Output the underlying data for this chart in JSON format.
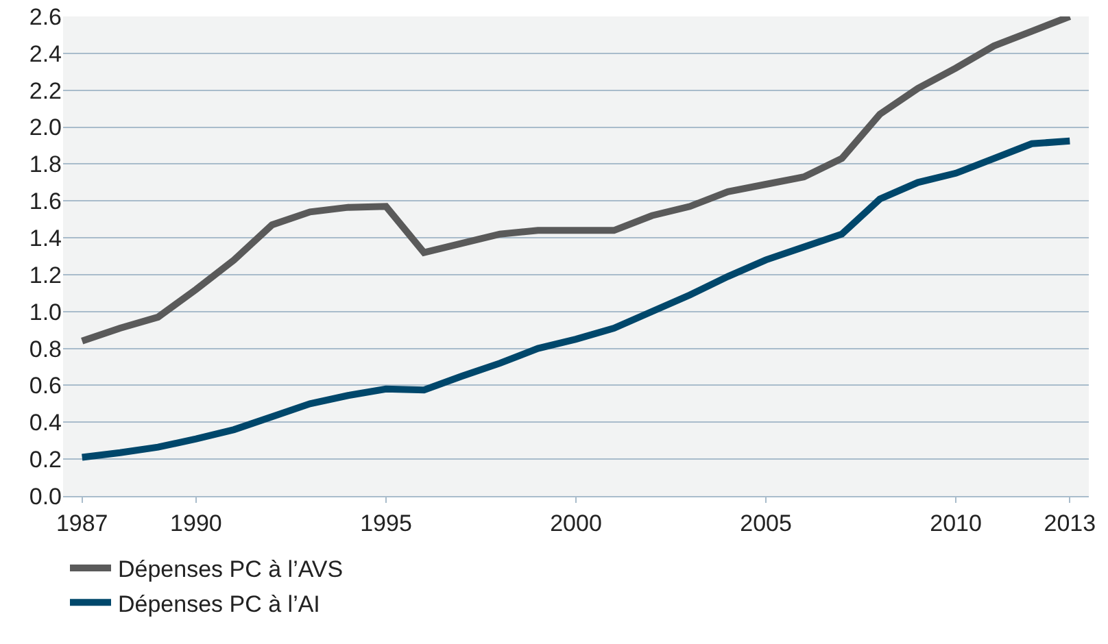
{
  "chart_data": {
    "type": "line",
    "x": [
      1987,
      1988,
      1989,
      1990,
      1991,
      1992,
      1993,
      1994,
      1995,
      1996,
      1997,
      1998,
      1999,
      2000,
      2001,
      2002,
      2003,
      2004,
      2005,
      2006,
      2007,
      2008,
      2009,
      2010,
      2011,
      2012,
      2013
    ],
    "series": [
      {
        "name": "Dépenses PC à l’AVS",
        "color": "#5a5a5a",
        "values": [
          0.84,
          0.91,
          0.97,
          1.12,
          1.28,
          1.47,
          1.54,
          1.565,
          1.57,
          1.32,
          1.37,
          1.42,
          1.44,
          1.44,
          1.44,
          1.52,
          1.57,
          1.65,
          1.69,
          1.73,
          1.83,
          2.07,
          2.21,
          2.32,
          2.44,
          2.52,
          2.6
        ]
      },
      {
        "name": "Dépenses PC à l’AI",
        "color": "#00476b",
        "values": [
          0.21,
          0.235,
          0.265,
          0.31,
          0.36,
          0.43,
          0.5,
          0.545,
          0.58,
          0.575,
          0.65,
          0.72,
          0.8,
          0.85,
          0.91,
          1.0,
          1.09,
          1.19,
          1.28,
          1.35,
          1.42,
          1.61,
          1.7,
          1.75,
          1.83,
          1.91,
          1.925
        ]
      }
    ],
    "xlim": [
      1986.5,
      2013.5
    ],
    "xticks": [
      1987,
      1990,
      1995,
      2000,
      2005,
      2010,
      2013
    ],
    "ylim": [
      0,
      2.6
    ],
    "yticks": [
      {
        "value": 0,
        "label": "0.0"
      },
      0.2,
      0.4,
      0.6,
      0.8,
      {
        "value": 1,
        "label": "1.0"
      },
      1.2,
      1.4,
      1.6,
      1.8,
      {
        "value": 2,
        "label": "2.0"
      },
      2.2,
      2.4,
      2.6
    ],
    "grid": "y",
    "legend": "bottom",
    "marker": "none",
    "line_style": "solid"
  }
}
